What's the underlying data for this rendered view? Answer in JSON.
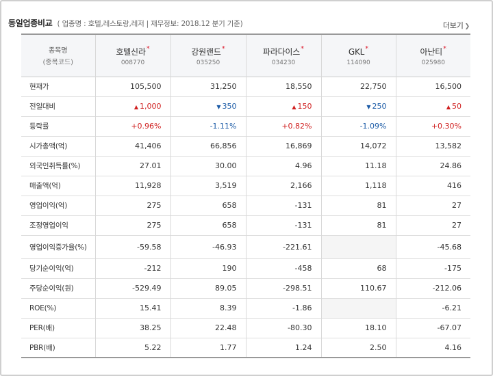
{
  "header": {
    "title": "동일업종비교",
    "subtitle": "( 업종명 : 호텔,레스토랑,레저 | 재무정보: 2018.12 분기 기준)",
    "more_label": "더보기"
  },
  "table": {
    "header_label": "종목명",
    "header_sublabel": "(종목코드)",
    "companies": [
      {
        "name": "호텔신라",
        "code": "008770"
      },
      {
        "name": "강원랜드",
        "code": "035250"
      },
      {
        "name": "파라다이스",
        "code": "034230"
      },
      {
        "name": "GKL",
        "code": "114090"
      },
      {
        "name": "아난티",
        "code": "025980"
      }
    ],
    "rows": [
      {
        "label": "현재가",
        "cells": [
          {
            "t": "105,500"
          },
          {
            "t": "31,250"
          },
          {
            "t": "18,550"
          },
          {
            "t": "22,750"
          },
          {
            "t": "16,500"
          }
        ]
      },
      {
        "label": "전일대비",
        "cells": [
          {
            "t": "1,000",
            "dir": "up",
            "arrow": "▲"
          },
          {
            "t": "350",
            "dir": "down",
            "arrow": "▼"
          },
          {
            "t": "150",
            "dir": "up",
            "arrow": "▲"
          },
          {
            "t": "250",
            "dir": "down",
            "arrow": "▼"
          },
          {
            "t": "50",
            "dir": "up",
            "arrow": "▲"
          }
        ]
      },
      {
        "label": "등락률",
        "cells": [
          {
            "t": "+0.96%",
            "dir": "up"
          },
          {
            "t": "-1.11%",
            "dir": "down"
          },
          {
            "t": "+0.82%",
            "dir": "up"
          },
          {
            "t": "-1.09%",
            "dir": "down"
          },
          {
            "t": "+0.30%",
            "dir": "up"
          }
        ]
      },
      {
        "label": "시가총액(억)",
        "cells": [
          {
            "t": "41,406"
          },
          {
            "t": "66,856"
          },
          {
            "t": "16,869"
          },
          {
            "t": "14,072"
          },
          {
            "t": "13,582"
          }
        ]
      },
      {
        "label": "외국인취득률(%)",
        "cells": [
          {
            "t": "27.01"
          },
          {
            "t": "30.00"
          },
          {
            "t": "4.96"
          },
          {
            "t": "11.18"
          },
          {
            "t": "24.86"
          }
        ]
      },
      {
        "label": "매출액(억)",
        "cells": [
          {
            "t": "11,928"
          },
          {
            "t": "3,519"
          },
          {
            "t": "2,166"
          },
          {
            "t": "1,118"
          },
          {
            "t": "416"
          }
        ]
      },
      {
        "label": "영업이익(억)",
        "cells": [
          {
            "t": "275"
          },
          {
            "t": "658"
          },
          {
            "t": "-131"
          },
          {
            "t": "81"
          },
          {
            "t": "27"
          }
        ]
      },
      {
        "label": "조정영업이익",
        "cells": [
          {
            "t": "275"
          },
          {
            "t": "658"
          },
          {
            "t": "-131"
          },
          {
            "t": "81"
          },
          {
            "t": "27"
          }
        ]
      },
      {
        "label": "영업이익증가율(%)",
        "cells": [
          {
            "t": "-59.58"
          },
          {
            "t": "-46.93"
          },
          {
            "t": "-221.61"
          },
          {
            "t": "",
            "empty": true
          },
          {
            "t": "-45.68"
          }
        ]
      },
      {
        "label": "당기순이익(억)",
        "cells": [
          {
            "t": "-212"
          },
          {
            "t": "190"
          },
          {
            "t": "-458"
          },
          {
            "t": "68"
          },
          {
            "t": "-175"
          }
        ]
      },
      {
        "label": "주당순이익(원)",
        "cells": [
          {
            "t": "-529.49"
          },
          {
            "t": "89.05"
          },
          {
            "t": "-298.51"
          },
          {
            "t": "110.67"
          },
          {
            "t": "-212.06"
          }
        ]
      },
      {
        "label": "ROE(%)",
        "cells": [
          {
            "t": "15.41"
          },
          {
            "t": "8.39"
          },
          {
            "t": "-1.86"
          },
          {
            "t": "",
            "empty": true
          },
          {
            "t": "-6.21"
          }
        ]
      },
      {
        "label": "PER(배)",
        "cells": [
          {
            "t": "38.25"
          },
          {
            "t": "22.48"
          },
          {
            "t": "-80.30"
          },
          {
            "t": "18.10"
          },
          {
            "t": "-67.07"
          }
        ]
      },
      {
        "label": "PBR(배)",
        "cells": [
          {
            "t": "5.22"
          },
          {
            "t": "1.77"
          },
          {
            "t": "1.24"
          },
          {
            "t": "2.50"
          },
          {
            "t": "4.16"
          }
        ]
      }
    ]
  }
}
